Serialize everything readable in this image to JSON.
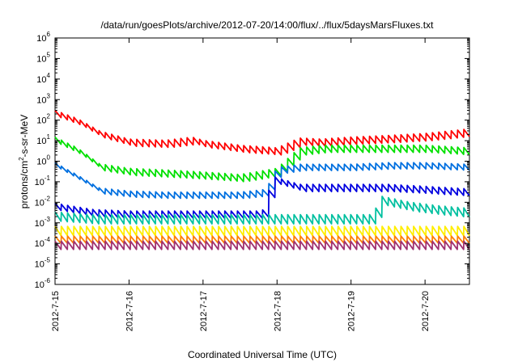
{
  "chart_data": {
    "type": "line",
    "title": "/data/run/goesPlots/archive/2012-07-20/14:00/flux/../flux/5daysMarsFluxes.txt",
    "xlabel": "Coordinated Universal Time (UTC)",
    "ylabel_parts": {
      "base": "protons/cm",
      "sup": "2",
      "rest": "-s-sr-MeV"
    },
    "scale_y": "log",
    "xlim": [
      0,
      5.6
    ],
    "ylim_exp": [
      -6,
      6
    ],
    "grid": false,
    "legend": "none",
    "x_ticks": [
      {
        "label": "2012-7-15",
        "x": 0
      },
      {
        "label": "2012-7-16",
        "x": 1
      },
      {
        "label": "2012-7-17",
        "x": 2
      },
      {
        "label": "2012-7-18",
        "x": 3
      },
      {
        "label": "2012-7-19",
        "x": 4
      },
      {
        "label": "2012-7-20",
        "x": 5
      }
    ],
    "y_ticks": [
      {
        "base": "10",
        "exp": "-6",
        "e": -6
      },
      {
        "base": "10",
        "exp": "-5",
        "e": -5
      },
      {
        "base": "10",
        "exp": "-4",
        "e": -4
      },
      {
        "base": "10",
        "exp": "-3",
        "e": -3
      },
      {
        "base": "10",
        "exp": "-2",
        "e": -2
      },
      {
        "base": "10",
        "exp": "-1",
        "e": -1
      },
      {
        "base": "10",
        "exp": "0",
        "e": 0
      },
      {
        "base": "10",
        "exp": "1",
        "e": 1
      },
      {
        "base": "10",
        "exp": "2",
        "e": 2
      },
      {
        "base": "10",
        "exp": "3",
        "e": 3
      },
      {
        "base": "10",
        "exp": "4",
        "e": 4
      },
      {
        "base": "10",
        "exp": "5",
        "e": 5
      },
      {
        "base": "10",
        "exp": "6",
        "e": 6
      }
    ],
    "series": [
      {
        "color": "#ff0000",
        "x": [
          0,
          0.3,
          0.6,
          1.0,
          1.5,
          1.85,
          2.0,
          2.5,
          3.0,
          3.3,
          3.6,
          4.0,
          4.5,
          5.0,
          5.6
        ],
        "y": [
          200,
          80,
          20,
          8,
          7,
          10,
          7,
          4,
          3,
          9,
          8,
          10,
          12,
          15,
          25
        ],
        "saw": 0.35
      },
      {
        "color": "#00e000",
        "x": [
          0,
          0.3,
          0.6,
          1.0,
          1.5,
          2.0,
          2.5,
          3.0,
          3.3,
          3.6,
          4.0,
          4.5,
          5.0,
          5.6
        ],
        "y": [
          10,
          3,
          0.5,
          0.3,
          0.25,
          0.2,
          0.15,
          0.3,
          3,
          4,
          4,
          4,
          4,
          3
        ],
        "saw": 0.35
      },
      {
        "color": "#0070e0",
        "x": [
          0,
          0.3,
          0.6,
          1.0,
          1.5,
          2.0,
          2.5,
          2.85,
          3.0,
          3.3,
          3.6,
          4.0,
          4.5,
          5.0,
          5.6
        ],
        "y": [
          0.6,
          0.15,
          0.035,
          0.025,
          0.022,
          0.022,
          0.022,
          0.03,
          0.35,
          0.5,
          0.5,
          0.5,
          0.6,
          0.6,
          0.5
        ],
        "saw": 0.3
      },
      {
        "color": "#0000e0",
        "x": [
          0,
          0.5,
          1.0,
          1.5,
          2.0,
          2.5,
          2.8,
          2.95,
          3.3,
          3.6,
          4.0,
          4.5,
          5.0,
          5.6
        ],
        "y": [
          0.006,
          0.003,
          0.0025,
          0.0025,
          0.0025,
          0.0025,
          0.0025,
          0.12,
          0.05,
          0.05,
          0.05,
          0.05,
          0.04,
          0.03
        ],
        "saw": 0.35
      },
      {
        "color": "#00c0a0",
        "x": [
          0,
          0.5,
          1.0,
          1.5,
          2.0,
          2.5,
          3.0,
          3.5,
          4.0,
          4.3,
          4.4,
          4.8,
          5.2,
          5.6
        ],
        "y": [
          0.002,
          0.0015,
          0.0015,
          0.0015,
          0.0015,
          0.0015,
          0.0015,
          0.0015,
          0.0015,
          0.0015,
          0.012,
          0.006,
          0.004,
          0.003
        ],
        "saw": 0.45
      },
      {
        "color": "#ffee00",
        "x": [
          0,
          1.0,
          2.0,
          3.0,
          4.0,
          5.0,
          5.6
        ],
        "y": [
          0.0004,
          0.0004,
          0.0004,
          0.0004,
          0.0004,
          0.0004,
          0.0004
        ],
        "saw": 0.45
      },
      {
        "color": "#ff8000",
        "x": [
          0,
          1.0,
          2.0,
          3.0,
          4.0,
          5.0,
          5.6
        ],
        "y": [
          0.00015,
          0.00015,
          0.00015,
          0.00015,
          0.00015,
          0.00015,
          0.00015
        ],
        "saw": 0.35
      },
      {
        "color": "#a03070",
        "x": [
          0,
          1.0,
          2.0,
          3.0,
          4.0,
          5.0,
          5.6
        ],
        "y": [
          8e-05,
          8e-05,
          8e-05,
          8e-05,
          8e-05,
          8e-05,
          8e-05
        ],
        "saw": 0.4
      }
    ]
  }
}
